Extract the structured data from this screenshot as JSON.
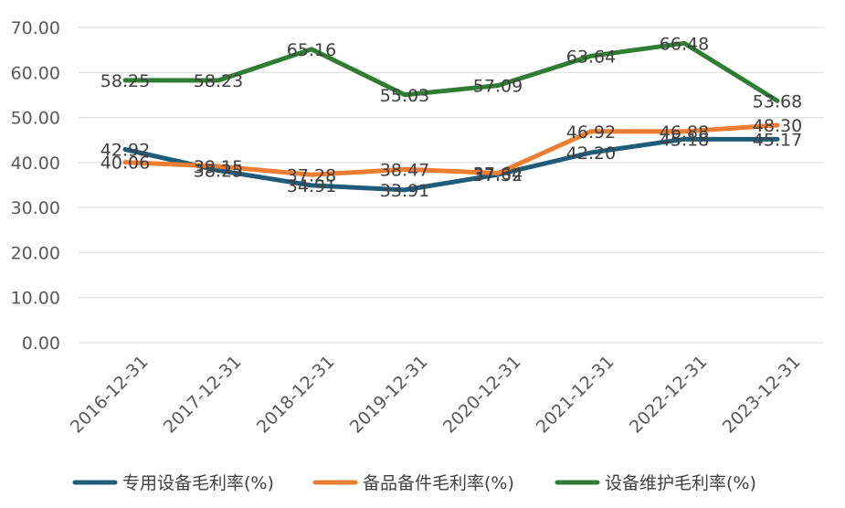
{
  "chart_data": {
    "type": "line",
    "title": "",
    "xlabel": "",
    "ylabel": "",
    "categories": [
      "2016-12-31",
      "2017-12-31",
      "2018-12-31",
      "2019-12-31",
      "2020-12-31",
      "2021-12-31",
      "2022-12-31",
      "2023-12-31"
    ],
    "y_ticks": [
      "0.00",
      "10.00",
      "20.00",
      "30.00",
      "40.00",
      "50.00",
      "60.00",
      "70.00"
    ],
    "ylim": [
      0,
      70
    ],
    "grid": "horizontal",
    "legend_position": "bottom",
    "series": [
      {
        "name": "专用设备毛利率(%)",
        "color": "#1f5c7a",
        "values": [
          42.92,
          38.25,
          34.91,
          33.91,
          37.32,
          42.2,
          45.18,
          45.17
        ],
        "labels": [
          "42.92",
          "38.25",
          "34.91",
          "33.91",
          "37.32",
          "42.20",
          "45.18",
          "45.17"
        ]
      },
      {
        "name": "备品备件毛利率(%)",
        "color": "#ed7d31",
        "values": [
          40.06,
          39.15,
          37.28,
          38.47,
          37.64,
          46.92,
          46.88,
          48.3
        ],
        "labels": [
          "40.06",
          "39.15",
          "37.28",
          "38.47",
          "37.64",
          "46.92",
          "46.88",
          "48.30"
        ]
      },
      {
        "name": "设备维护毛利率(%)",
        "color": "#2e7d32",
        "values": [
          58.25,
          58.23,
          65.16,
          55.03,
          57.09,
          63.64,
          66.48,
          53.68
        ],
        "labels": [
          "58.25",
          "58.23",
          "65.16",
          "55.03",
          "57.09",
          "63.64",
          "66.48",
          "53.68"
        ]
      }
    ]
  }
}
